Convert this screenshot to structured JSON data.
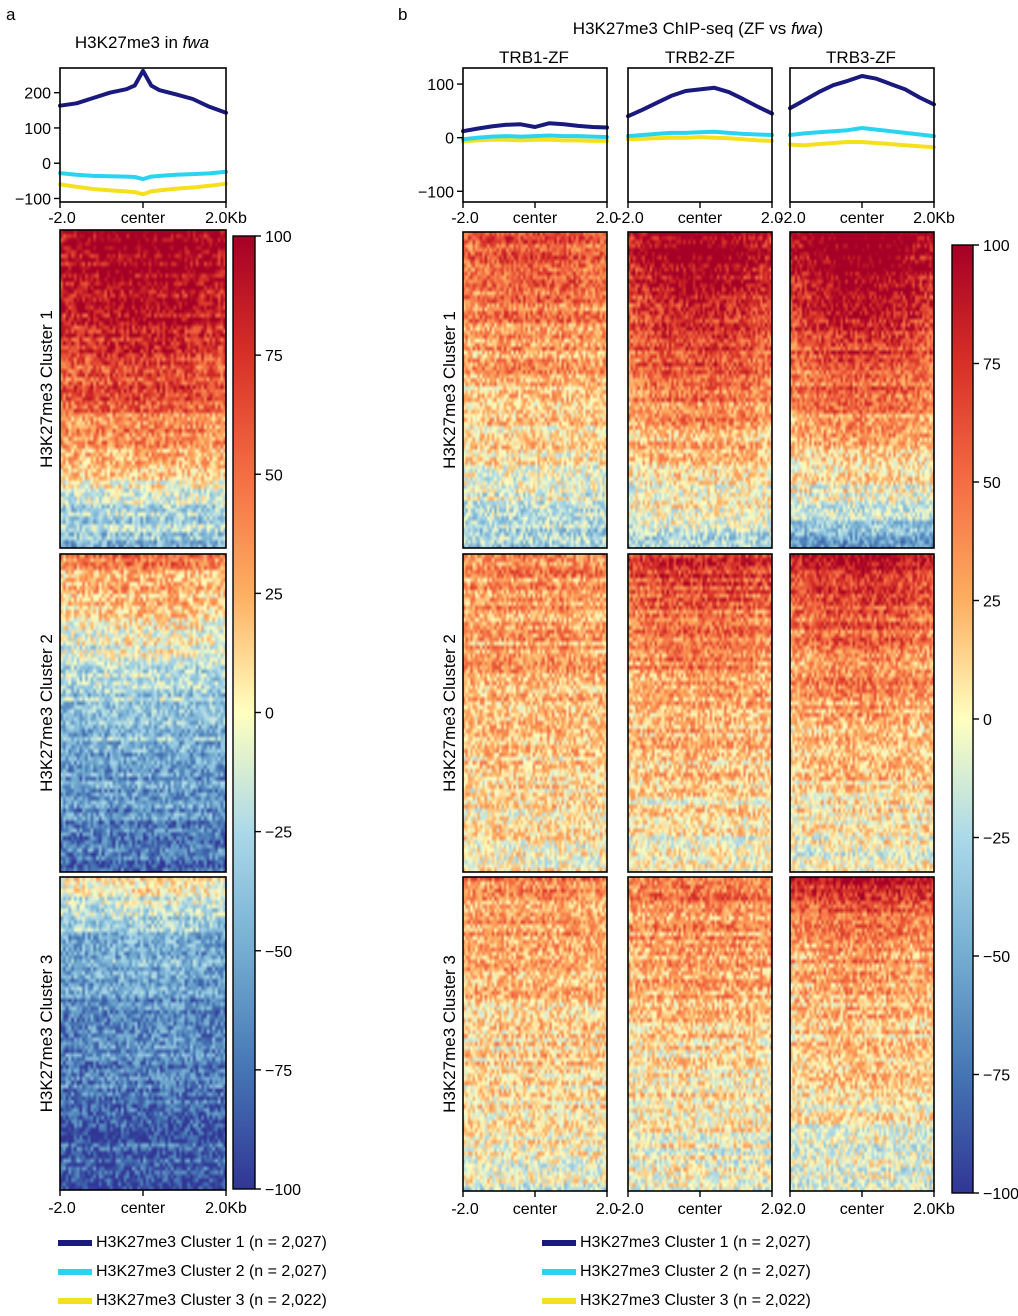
{
  "panel_a": {
    "letter": "a",
    "title_prefix": "H3K27me3 in ",
    "title_italic": "fwa"
  },
  "panel_b": {
    "letter": "b",
    "title_prefix": "H3K27me3 ChIP-seq (ZF vs ",
    "title_italic": "fwa",
    "title_suffix": ")"
  },
  "colors": {
    "cluster1": "#1a1a7e",
    "cluster2": "#2ad4f0",
    "cluster3": "#f5e01e"
  },
  "legend_a": [
    "H3K27me3 Cluster 1 (n = 2,027)",
    "H3K27me3 Cluster 2 (n = 2,027)",
    "H3K27me3 Cluster 3 (n = 2,022)"
  ],
  "legend_b": [
    "H3K27me3 Cluster 1 (n = 2,027)",
    "H3K27me3 Cluster 2 (n = 2,027)",
    "H3K27me3 Cluster 3 (n = 2,022)"
  ],
  "chart_data": [
    {
      "type": "line",
      "panel": "a",
      "title": "H3K27me3 in fwa",
      "x_ticks": [
        "-2.0",
        "center",
        "2.0Kb"
      ],
      "x": [
        -2.0,
        -1.6,
        -1.2,
        -0.8,
        -0.4,
        -0.2,
        0.0,
        0.2,
        0.4,
        0.8,
        1.2,
        1.6,
        2.0
      ],
      "ylim": [
        -110,
        270
      ],
      "y_ticks": [
        200,
        100,
        0,
        -100
      ],
      "y_tick_labels": [
        "200",
        "100",
        "0",
        "−100"
      ],
      "series": [
        {
          "name": "H3K27me3 Cluster 1 (n = 2,027)",
          "values": [
            163,
            170,
            185,
            200,
            210,
            220,
            262,
            220,
            207,
            195,
            182,
            160,
            143
          ]
        },
        {
          "name": "H3K27me3 Cluster 2 (n = 2,027)",
          "values": [
            -28,
            -33,
            -36,
            -37,
            -38,
            -39,
            -45,
            -38,
            -36,
            -33,
            -31,
            -29,
            -24
          ]
        },
        {
          "name": "H3K27me3 Cluster 3 (n = 2,022)",
          "values": [
            -60,
            -67,
            -73,
            -77,
            -80,
            -82,
            -88,
            -80,
            -77,
            -72,
            -69,
            -64,
            -58
          ]
        }
      ]
    },
    {
      "type": "line",
      "panel": "b",
      "title": "TRB1-ZF",
      "x_ticks": [
        "-2.0",
        "center",
        "2.0"
      ],
      "x": [
        -2.0,
        -1.6,
        -1.2,
        -0.8,
        -0.4,
        0.0,
        0.4,
        0.8,
        1.2,
        1.6,
        2.0
      ],
      "ylim": [
        -120,
        130
      ],
      "y_ticks": [
        100,
        0,
        -100
      ],
      "y_tick_labels": [
        "100",
        "0",
        "−100"
      ],
      "series": [
        {
          "name": "H3K27me3 Cluster 1 (n = 2,027)",
          "values": [
            12,
            17,
            21,
            24,
            25,
            20,
            27,
            25,
            22,
            20,
            19
          ]
        },
        {
          "name": "H3K27me3 Cluster 2 (n = 2,027)",
          "values": [
            -3,
            0,
            2,
            3,
            2,
            3,
            4,
            3,
            3,
            2,
            1
          ]
        },
        {
          "name": "H3K27me3 Cluster 3 (n = 2,022)",
          "values": [
            -7,
            -5,
            -4,
            -4,
            -5,
            -4,
            -4,
            -5,
            -5,
            -6,
            -6
          ]
        }
      ]
    },
    {
      "type": "line",
      "panel": "b",
      "title": "TRB2-ZF",
      "x_ticks": [
        "-2.0",
        "center",
        "2.0"
      ],
      "x": [
        -2.0,
        -1.6,
        -1.2,
        -0.8,
        -0.4,
        0.0,
        0.4,
        0.8,
        1.2,
        1.6,
        2.0
      ],
      "ylim": [
        -120,
        130
      ],
      "series": [
        {
          "name": "H3K27me3 Cluster 1 (n = 2,027)",
          "values": [
            40,
            52,
            65,
            78,
            87,
            90,
            93,
            85,
            72,
            58,
            45
          ]
        },
        {
          "name": "H3K27me3 Cluster 2 (n = 2,027)",
          "values": [
            3,
            5,
            7,
            9,
            9,
            10,
            11,
            9,
            7,
            6,
            5
          ]
        },
        {
          "name": "H3K27me3 Cluster 3 (n = 2,022)",
          "values": [
            -3,
            -2,
            -1,
            0,
            0,
            1,
            0,
            -1,
            -3,
            -5,
            -6
          ]
        }
      ]
    },
    {
      "type": "line",
      "panel": "b",
      "title": "TRB3-ZF",
      "x_ticks": [
        "-2.0",
        "center",
        "2.0Kb"
      ],
      "x": [
        -2.0,
        -1.6,
        -1.2,
        -0.8,
        -0.4,
        0.0,
        0.4,
        0.8,
        1.2,
        1.6,
        2.0
      ],
      "ylim": [
        -120,
        130
      ],
      "series": [
        {
          "name": "H3K27me3 Cluster 1 (n = 2,027)",
          "values": [
            55,
            70,
            85,
            98,
            106,
            115,
            110,
            100,
            90,
            75,
            62
          ]
        },
        {
          "name": "H3K27me3 Cluster 2 (n = 2,027)",
          "values": [
            5,
            8,
            10,
            12,
            14,
            18,
            15,
            12,
            9,
            6,
            3
          ]
        },
        {
          "name": "H3K27me3 Cluster 3 (n = 2,022)",
          "values": [
            -13,
            -14,
            -12,
            -10,
            -8,
            -8,
            -10,
            -12,
            -14,
            -16,
            -18
          ]
        }
      ]
    },
    {
      "type": "heatmap",
      "panel": "a",
      "sample": "H3K27me3 in fwa",
      "row_groups": [
        "H3K27me3 Cluster 1",
        "H3K27me3 Cluster 2",
        "H3K27me3 Cluster 3"
      ],
      "x_ticks": [
        "-2.0",
        "center",
        "2.0Kb"
      ],
      "color_range": [
        -100,
        100
      ],
      "colorbar_ticks": [
        "100",
        "75",
        "50",
        "25",
        "0",
        "−25",
        "−50",
        "−75",
        "−100"
      ],
      "row_profiles": [
        [
          92,
          88,
          80,
          70,
          58,
          45,
          30,
          10,
          -25,
          -40
        ],
        [
          35,
          15,
          -5,
          -20,
          -35,
          -45,
          -55,
          -62,
          -70,
          -78
        ],
        [
          5,
          -30,
          -50,
          -58,
          -65,
          -70,
          -75,
          -80,
          -85,
          -90
        ]
      ],
      "center_boost": [
        6,
        4,
        3
      ]
    },
    {
      "type": "heatmap",
      "panel": "b",
      "sample": "TRB1-ZF",
      "row_groups": [
        "H3K27me3 Cluster 1",
        "H3K27me3 Cluster 2",
        "H3K27me3 Cluster 3"
      ],
      "x_ticks": [
        "-2.0",
        "center",
        "2.0"
      ],
      "color_range": [
        -100,
        100
      ],
      "row_profiles": [
        [
          55,
          45,
          38,
          32,
          25,
          15,
          5,
          -5,
          -15,
          -30
        ],
        [
          40,
          32,
          28,
          25,
          22,
          18,
          14,
          10,
          5,
          0
        ],
        [
          38,
          30,
          25,
          20,
          16,
          12,
          8,
          4,
          0,
          -5
        ]
      ],
      "center_boost": [
        4,
        2,
        2
      ]
    },
    {
      "type": "heatmap",
      "panel": "b",
      "sample": "TRB2-ZF",
      "row_groups": [
        "H3K27me3 Cluster 1",
        "H3K27me3 Cluster 2",
        "H3K27me3 Cluster 3"
      ],
      "x_ticks": [
        "-2.0",
        "center",
        "2.0"
      ],
      "color_range": [
        -100,
        100
      ],
      "row_profiles": [
        [
          85,
          75,
          62,
          50,
          40,
          30,
          18,
          5,
          -8,
          -25
        ],
        [
          70,
          50,
          40,
          32,
          26,
          20,
          14,
          8,
          2,
          -5
        ],
        [
          45,
          32,
          25,
          20,
          15,
          10,
          6,
          2,
          -2,
          -8
        ]
      ],
      "center_boost": [
        10,
        5,
        3
      ]
    },
    {
      "type": "heatmap",
      "panel": "b",
      "sample": "TRB3-ZF",
      "row_groups": [
        "H3K27me3 Cluster 1",
        "H3K27me3 Cluster 2",
        "H3K27me3 Cluster 3"
      ],
      "x_ticks": [
        "-2.0",
        "center",
        "2.0Kb"
      ],
      "color_range": [
        -100,
        100
      ],
      "colorbar_ticks": [
        "100",
        "75",
        "50",
        "25",
        "0",
        "−25",
        "−50",
        "−75",
        "−100"
      ],
      "row_profiles": [
        [
          90,
          82,
          70,
          58,
          45,
          32,
          18,
          2,
          -20,
          -55
        ],
        [
          80,
          55,
          42,
          32,
          25,
          18,
          12,
          6,
          0,
          -8
        ],
        [
          75,
          40,
          28,
          20,
          15,
          10,
          5,
          0,
          -5,
          -12
        ]
      ],
      "center_boost": [
        10,
        6,
        5
      ]
    }
  ]
}
